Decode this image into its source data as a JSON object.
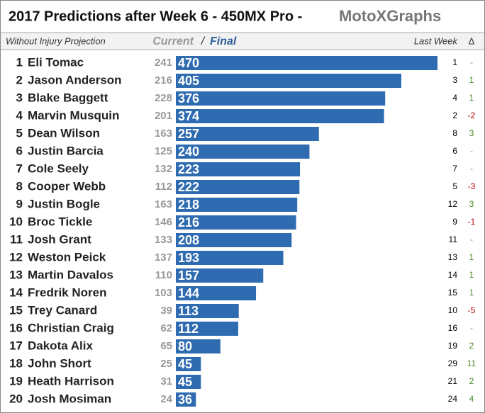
{
  "chart_data": {
    "type": "bar",
    "title": "2017 Predictions after Week 6  -  450MX Pro  -",
    "brand": "MotoXGraphs",
    "subtitle": "Without Injury Projection",
    "header_separator": "/",
    "ranks": [
      1,
      2,
      3,
      4,
      5,
      6,
      7,
      8,
      9,
      10,
      11,
      12,
      13,
      14,
      15,
      16,
      17,
      18,
      19,
      20
    ],
    "categories": [
      "Eli Tomac",
      "Jason Anderson",
      "Blake Baggett",
      "Marvin Musquin",
      "Dean Wilson",
      "Justin Barcia",
      "Cole Seely",
      "Cooper Webb",
      "Justin Bogle",
      "Broc Tickle",
      "Josh Grant",
      "Weston Peick",
      "Martin Davalos",
      "Fredrik Noren",
      "Trey Canard",
      "Christian Craig",
      "Dakota Alix",
      "John Short",
      "Heath Harrison",
      "Josh Mosiman"
    ],
    "series": [
      {
        "name": "Current",
        "color": "#999999",
        "values": [
          241,
          216,
          228,
          201,
          163,
          125,
          132,
          112,
          163,
          146,
          133,
          137,
          110,
          103,
          39,
          62,
          65,
          25,
          31,
          24
        ]
      },
      {
        "name": "Final",
        "color": "#2e6bb0",
        "values": [
          470,
          405,
          376,
          374,
          257,
          240,
          223,
          222,
          218,
          216,
          208,
          193,
          157,
          144,
          113,
          112,
          80,
          45,
          45,
          36
        ]
      },
      {
        "name": "Last Week",
        "color": "#000000",
        "values": [
          1,
          3,
          4,
          2,
          8,
          6,
          7,
          5,
          12,
          9,
          11,
          13,
          14,
          15,
          10,
          16,
          19,
          29,
          21,
          24
        ]
      },
      {
        "name": "Δ",
        "color": "#4a8a2a",
        "negative_color": "#c00000",
        "zero_color": "#888888",
        "values": [
          0,
          1,
          1,
          -2,
          3,
          0,
          0,
          -3,
          3,
          -1,
          0,
          1,
          1,
          1,
          -5,
          0,
          2,
          11,
          2,
          4
        ],
        "value_labels": [
          "-",
          "1",
          "1",
          "-2",
          "3",
          "-",
          "-",
          "-3",
          "3",
          "-1",
          "-",
          "1",
          "1",
          "1",
          "-5",
          "-",
          "2",
          "11",
          "2",
          "4"
        ]
      }
    ]
  }
}
